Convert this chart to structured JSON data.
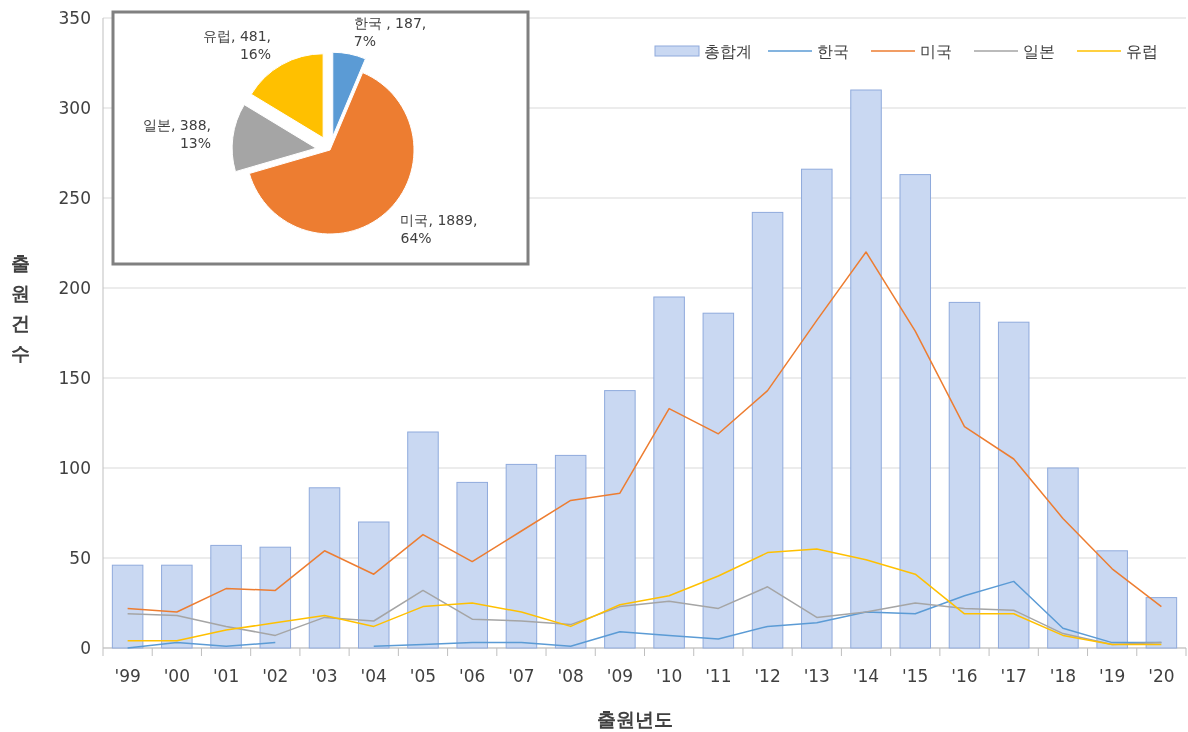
{
  "chart_data": [
    {
      "type": "bar",
      "xlabel": "출원년도",
      "ylabel": "출원건수",
      "categories": [
        "'99",
        "'00",
        "'01",
        "'02",
        "'03",
        "'04",
        "'05",
        "'06",
        "'07",
        "'08",
        "'09",
        "'10",
        "'11",
        "'12",
        "'13",
        "'14",
        "'15",
        "'16",
        "'17",
        "'18",
        "'19",
        "'20"
      ],
      "ylim": [
        0,
        350
      ],
      "yticks": [
        0,
        50,
        100,
        150,
        200,
        250,
        300,
        350
      ],
      "grid": "y",
      "legend": "top right",
      "series": [
        {
          "name": "총합계",
          "color": "#c9d8f2",
          "values": [
            46,
            46,
            57,
            56,
            89,
            70,
            120,
            92,
            102,
            107,
            143,
            195,
            186,
            242,
            266,
            310,
            263,
            192,
            181,
            100,
            54,
            28
          ]
        },
        {
          "name": "한국",
          "type": "line",
          "color": "#5b9bd5",
          "values": [
            0,
            3,
            1,
            3,
            null,
            1,
            2,
            3,
            3,
            1,
            9,
            7,
            5,
            12,
            14,
            20,
            19,
            29,
            37,
            11,
            3,
            3
          ]
        },
        {
          "name": "미국",
          "type": "line",
          "color": "#ed7d31",
          "values": [
            22,
            20,
            33,
            32,
            54,
            41,
            63,
            48,
            65,
            82,
            86,
            133,
            119,
            143,
            182,
            220,
            176,
            123,
            105,
            72,
            44,
            23
          ]
        },
        {
          "name": "일본",
          "type": "line",
          "color": "#a5a5a5",
          "values": [
            19,
            18,
            12,
            7,
            17,
            15,
            32,
            16,
            15,
            13,
            23,
            26,
            22,
            34,
            17,
            20,
            25,
            22,
            21,
            8,
            2,
            3
          ]
        },
        {
          "name": "유럽",
          "type": "line",
          "color": "#ffc000",
          "values": [
            4,
            4,
            10,
            14,
            18,
            12,
            23,
            25,
            20,
            12,
            24,
            29,
            40,
            53,
            55,
            49,
            41,
            19,
            19,
            7,
            2,
            2
          ]
        }
      ]
    },
    {
      "type": "pie",
      "categories": [
        "한국",
        "미국",
        "일본",
        "유럽"
      ],
      "values": [
        187,
        1889,
        388,
        481
      ],
      "colors": [
        "#5b9bd5",
        "#ed7d31",
        "#a5a5a5",
        "#ffc000"
      ],
      "value_labels": [
        " , 187, 7%",
        ", 1889, 64%",
        ", 388, 13%",
        ", 481, 16%"
      ]
    }
  ]
}
